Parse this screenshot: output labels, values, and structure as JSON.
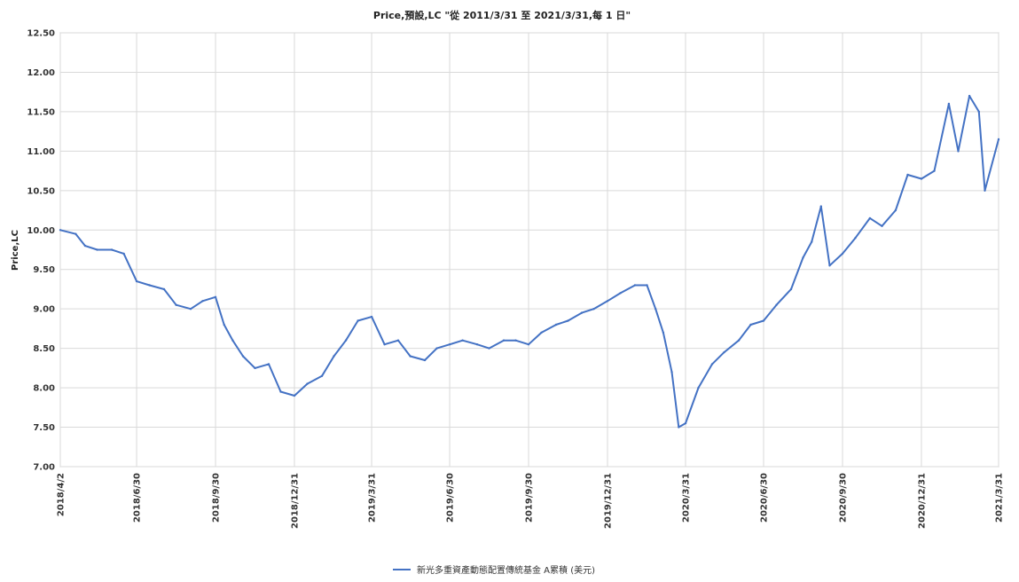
{
  "chart_data": {
    "type": "line",
    "title": "Price,預設,LC \"從 2011/3/31 至 2021/3/31,每 1 日\"",
    "ylabel": "Price,LC",
    "xlabel": "",
    "ylim": [
      7.0,
      12.5
    ],
    "yticks": [
      "7.00",
      "7.50",
      "8.00",
      "8.50",
      "9.00",
      "9.50",
      "10.00",
      "10.50",
      "11.00",
      "11.50",
      "12.00",
      "12.50"
    ],
    "xticks": [
      "2018/4/2",
      "2018/6/30",
      "2018/9/30",
      "2018/12/31",
      "2019/3/31",
      "2019/6/30",
      "2019/9/30",
      "2019/12/31",
      "2020/3/31",
      "2020/6/30",
      "2020/9/30",
      "2020/12/31",
      "2021/3/31"
    ],
    "grid": true,
    "legend_position": "bottom-center",
    "series": [
      {
        "name": "新光多重資產動態配置傳統基金 A累積 (美元)",
        "color": "#4472c4",
        "x": [
          "2018/4/2",
          "2018/4/20",
          "2018/5/1",
          "2018/5/15",
          "2018/6/1",
          "2018/6/15",
          "2018/6/30",
          "2018/7/15",
          "2018/8/1",
          "2018/8/15",
          "2018/9/1",
          "2018/9/15",
          "2018/9/30",
          "2018/10/10",
          "2018/10/20",
          "2018/11/1",
          "2018/11/15",
          "2018/12/1",
          "2018/12/15",
          "2018/12/31",
          "2019/1/15",
          "2019/2/1",
          "2019/2/15",
          "2019/3/1",
          "2019/3/15",
          "2019/3/31",
          "2019/4/15",
          "2019/5/1",
          "2019/5/15",
          "2019/6/1",
          "2019/6/15",
          "2019/6/30",
          "2019/7/15",
          "2019/8/1",
          "2019/8/15",
          "2019/9/1",
          "2019/9/15",
          "2019/9/30",
          "2019/10/15",
          "2019/11/1",
          "2019/11/15",
          "2019/12/1",
          "2019/12/15",
          "2019/12/31",
          "2020/1/15",
          "2020/2/1",
          "2020/2/15",
          "2020/2/25",
          "2020/3/5",
          "2020/3/15",
          "2020/3/23",
          "2020/3/31",
          "2020/4/15",
          "2020/5/1",
          "2020/5/15",
          "2020/6/1",
          "2020/6/15",
          "2020/6/30",
          "2020/7/15",
          "2020/8/1",
          "2020/8/15",
          "2020/8/25",
          "2020/9/5",
          "2020/9/15",
          "2020/9/30",
          "2020/10/15",
          "2020/11/1",
          "2020/11/15",
          "2020/12/1",
          "2020/12/15",
          "2020/12/31",
          "2021/1/15",
          "2021/2/1",
          "2021/2/12",
          "2021/2/25",
          "2021/3/8",
          "2021/3/15",
          "2021/3/31"
        ],
        "values": [
          10.0,
          9.95,
          9.8,
          9.75,
          9.75,
          9.7,
          9.35,
          9.3,
          9.25,
          9.05,
          9.0,
          9.1,
          9.15,
          8.8,
          8.6,
          8.4,
          8.25,
          8.3,
          7.95,
          7.9,
          8.05,
          8.15,
          8.4,
          8.6,
          8.85,
          8.9,
          8.55,
          8.6,
          8.4,
          8.35,
          8.5,
          8.55,
          8.6,
          8.55,
          8.5,
          8.6,
          8.6,
          8.55,
          8.7,
          8.8,
          8.85,
          8.95,
          9.0,
          9.1,
          9.2,
          9.3,
          9.3,
          9.0,
          8.7,
          8.2,
          7.5,
          7.55,
          8.0,
          8.3,
          8.45,
          8.6,
          8.8,
          8.85,
          9.05,
          9.25,
          9.65,
          9.85,
          10.3,
          9.55,
          9.7,
          9.9,
          10.15,
          10.05,
          10.25,
          10.7,
          10.65,
          10.75,
          11.6,
          11.0,
          11.7,
          11.5,
          10.5,
          11.15
        ]
      }
    ]
  }
}
